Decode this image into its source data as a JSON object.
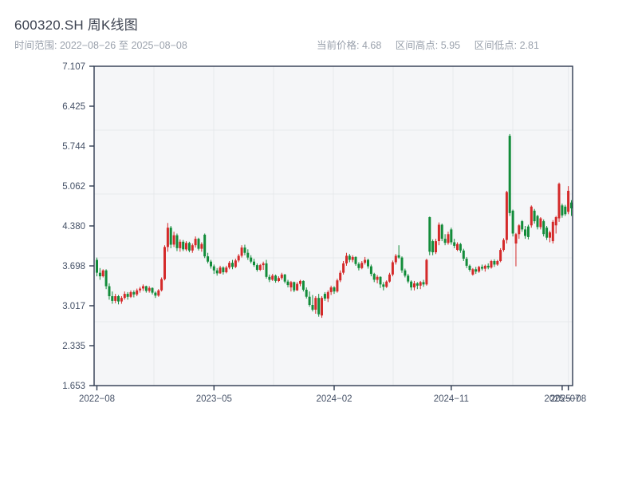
{
  "header": {
    "title": "600320.SH 周K线图",
    "subtitle": "时间范围: 2022−08−26 至 2025−08−08",
    "stats": {
      "current_label": "当前价格:",
      "current_value": "4.68",
      "high_label": "区间高点:",
      "high_value": "5.95",
      "low_label": "区间低点:",
      "low_value": "2.81"
    }
  },
  "chart_data": {
    "type": "candlestick",
    "title": "600320.SH 周K线图",
    "period": "weekly",
    "date_range": {
      "start": "2022-08-26",
      "end": "2025-08-08"
    },
    "current_price": 4.68,
    "range_high": 5.95,
    "range_low": 2.81,
    "colors": {
      "up": "#d42a2a",
      "down": "#128c3a",
      "frame": "#2e3a50",
      "grid": "#e7e9ec",
      "plot_bg": "#f5f6f8",
      "tick_text": "#445066"
    },
    "y_axis": {
      "min": 1.653,
      "max": 7.107,
      "ticks": [
        7.107,
        6.425,
        5.744,
        5.062,
        4.38,
        3.698,
        3.017,
        2.335,
        1.653
      ]
    },
    "x_axis": {
      "ticks": [
        {
          "index": 0,
          "label": "2022−08"
        },
        {
          "index": 38,
          "label": "2023−05"
        },
        {
          "index": 77,
          "label": "2024−02"
        },
        {
          "index": 115,
          "label": "2024−11"
        },
        {
          "index": 151,
          "label": "2025−07"
        },
        {
          "index": 153,
          "label": "2025−08"
        }
      ]
    },
    "grid": {
      "h_divisions": 5,
      "v_divisions": 8
    },
    "candles_ohlc": [
      [
        3.8,
        3.84,
        3.52,
        3.58
      ],
      [
        3.58,
        3.66,
        3.46,
        3.52
      ],
      [
        3.52,
        3.64,
        3.5,
        3.62
      ],
      [
        3.62,
        3.64,
        3.3,
        3.35
      ],
      [
        3.35,
        3.4,
        3.12,
        3.18
      ],
      [
        3.18,
        3.26,
        3.05,
        3.1
      ],
      [
        3.1,
        3.22,
        3.06,
        3.18
      ],
      [
        3.18,
        3.2,
        3.04,
        3.09
      ],
      [
        3.09,
        3.18,
        3.05,
        3.15
      ],
      [
        3.15,
        3.26,
        3.12,
        3.22
      ],
      [
        3.22,
        3.25,
        3.12,
        3.17
      ],
      [
        3.17,
        3.28,
        3.15,
        3.25
      ],
      [
        3.25,
        3.28,
        3.16,
        3.21
      ],
      [
        3.21,
        3.31,
        3.18,
        3.28
      ],
      [
        3.28,
        3.34,
        3.24,
        3.31
      ],
      [
        3.31,
        3.38,
        3.27,
        3.35
      ],
      [
        3.35,
        3.36,
        3.24,
        3.27
      ],
      [
        3.27,
        3.35,
        3.24,
        3.32
      ],
      [
        3.32,
        3.33,
        3.21,
        3.24
      ],
      [
        3.24,
        3.26,
        3.15,
        3.19
      ],
      [
        3.19,
        3.3,
        3.17,
        3.28
      ],
      [
        3.28,
        3.5,
        3.26,
        3.47
      ],
      [
        3.47,
        4.05,
        3.45,
        4.02
      ],
      [
        4.02,
        4.43,
        3.94,
        4.35
      ],
      [
        4.35,
        4.38,
        4.0,
        4.06
      ],
      [
        4.06,
        4.28,
        4.02,
        4.22
      ],
      [
        4.22,
        4.25,
        3.95,
        4.0
      ],
      [
        4.0,
        4.15,
        3.94,
        4.11
      ],
      [
        4.11,
        4.14,
        3.95,
        3.98
      ],
      [
        3.98,
        4.12,
        3.95,
        4.09
      ],
      [
        4.09,
        4.11,
        3.93,
        3.96
      ],
      [
        3.96,
        4.08,
        3.92,
        4.05
      ],
      [
        4.05,
        4.2,
        4.01,
        4.16
      ],
      [
        4.16,
        4.18,
        3.96,
        3.99
      ],
      [
        3.99,
        4.1,
        3.94,
        4.07
      ],
      [
        4.23,
        4.25,
        3.83,
        3.86
      ],
      [
        3.86,
        3.92,
        3.74,
        3.77
      ],
      [
        3.77,
        3.8,
        3.65,
        3.69
      ],
      [
        3.69,
        3.72,
        3.56,
        3.62
      ],
      [
        3.62,
        3.66,
        3.53,
        3.57
      ],
      [
        3.57,
        3.7,
        3.56,
        3.67
      ],
      [
        3.67,
        3.69,
        3.55,
        3.59
      ],
      [
        3.59,
        3.7,
        3.57,
        3.67
      ],
      [
        3.67,
        3.78,
        3.64,
        3.75
      ],
      [
        3.75,
        3.8,
        3.64,
        3.68
      ],
      [
        3.68,
        3.82,
        3.66,
        3.79
      ],
      [
        3.79,
        3.9,
        3.76,
        3.87
      ],
      [
        3.87,
        4.05,
        3.84,
        4.01
      ],
      [
        4.01,
        4.06,
        3.88,
        3.92
      ],
      [
        3.92,
        3.98,
        3.8,
        3.84
      ],
      [
        3.84,
        3.88,
        3.74,
        3.77
      ],
      [
        3.77,
        3.82,
        3.68,
        3.71
      ],
      [
        3.71,
        3.74,
        3.6,
        3.63
      ],
      [
        3.63,
        3.73,
        3.61,
        3.71
      ],
      [
        3.71,
        3.77,
        3.63,
        3.74
      ],
      [
        3.74,
        3.8,
        3.48,
        3.51
      ],
      [
        3.51,
        3.55,
        3.42,
        3.46
      ],
      [
        3.46,
        3.56,
        3.44,
        3.53
      ],
      [
        3.53,
        3.55,
        3.41,
        3.44
      ],
      [
        3.44,
        3.52,
        3.42,
        3.49
      ],
      [
        3.49,
        3.58,
        3.46,
        3.55
      ],
      [
        3.55,
        3.56,
        3.4,
        3.43
      ],
      [
        3.43,
        3.46,
        3.33,
        3.37
      ],
      [
        3.33,
        3.44,
        3.26,
        3.42
      ],
      [
        3.42,
        3.43,
        3.25,
        3.28
      ],
      [
        3.28,
        3.42,
        3.27,
        3.39
      ],
      [
        3.39,
        3.46,
        3.35,
        3.44
      ],
      [
        3.44,
        3.45,
        3.26,
        3.29
      ],
      [
        3.29,
        3.33,
        3.14,
        3.17
      ],
      [
        3.17,
        3.26,
        3.0,
        3.03
      ],
      [
        3.03,
        3.2,
        2.92,
        2.95
      ],
      [
        2.95,
        3.18,
        2.88,
        3.15
      ],
      [
        3.15,
        3.22,
        2.83,
        2.87
      ],
      [
        2.85,
        3.18,
        2.81,
        3.15
      ],
      [
        3.22,
        3.25,
        3.1,
        3.14
      ],
      [
        3.14,
        3.28,
        3.08,
        3.25
      ],
      [
        3.25,
        3.36,
        3.2,
        3.33
      ],
      [
        3.33,
        3.35,
        3.22,
        3.26
      ],
      [
        3.26,
        3.48,
        3.24,
        3.45
      ],
      [
        3.45,
        3.62,
        3.42,
        3.58
      ],
      [
        3.58,
        3.78,
        3.55,
        3.74
      ],
      [
        3.74,
        3.92,
        3.7,
        3.87
      ],
      [
        3.87,
        3.9,
        3.76,
        3.8
      ],
      [
        3.8,
        3.88,
        3.76,
        3.85
      ],
      [
        3.85,
        3.86,
        3.7,
        3.73
      ],
      [
        3.73,
        3.76,
        3.62,
        3.66
      ],
      [
        3.66,
        3.78,
        3.64,
        3.75
      ],
      [
        3.75,
        3.85,
        3.72,
        3.8
      ],
      [
        3.8,
        3.82,
        3.65,
        3.69
      ],
      [
        3.69,
        3.72,
        3.52,
        3.56
      ],
      [
        3.56,
        3.58,
        3.42,
        3.46
      ],
      [
        3.46,
        3.54,
        3.4,
        3.51
      ],
      [
        3.51,
        3.52,
        3.32,
        3.38
      ],
      [
        3.38,
        3.42,
        3.28,
        3.34
      ],
      [
        3.34,
        3.45,
        3.32,
        3.43
      ],
      [
        3.43,
        3.58,
        3.41,
        3.55
      ],
      [
        3.55,
        3.79,
        3.52,
        3.76
      ],
      [
        3.76,
        3.9,
        3.72,
        3.87
      ],
      [
        3.88,
        4.05,
        3.82,
        3.84
      ],
      [
        3.84,
        3.86,
        3.58,
        3.62
      ],
      [
        3.62,
        3.65,
        3.5,
        3.53
      ],
      [
        3.53,
        3.56,
        3.4,
        3.43
      ],
      [
        3.43,
        3.45,
        3.28,
        3.33
      ],
      [
        3.33,
        3.44,
        3.28,
        3.4
      ],
      [
        3.4,
        3.42,
        3.3,
        3.36
      ],
      [
        3.36,
        3.44,
        3.3,
        3.42
      ],
      [
        3.42,
        3.46,
        3.34,
        3.38
      ],
      [
        3.38,
        3.82,
        3.36,
        3.8
      ],
      [
        4.53,
        4.54,
        3.88,
        3.94
      ],
      [
        4.12,
        4.15,
        3.88,
        3.93
      ],
      [
        3.93,
        4.16,
        3.9,
        4.12
      ],
      [
        4.12,
        4.44,
        4.05,
        4.4
      ],
      [
        4.4,
        4.42,
        4.12,
        4.16
      ],
      [
        4.16,
        4.24,
        4.05,
        4.09
      ],
      [
        4.09,
        4.28,
        4.06,
        4.24
      ],
      [
        4.32,
        4.35,
        4.06,
        4.1
      ],
      [
        4.1,
        4.16,
        4.0,
        4.04
      ],
      [
        3.97,
        4.1,
        3.95,
        4.07
      ],
      [
        4.07,
        4.09,
        3.92,
        3.96
      ],
      [
        3.96,
        3.99,
        3.78,
        3.82
      ],
      [
        3.82,
        3.85,
        3.66,
        3.7
      ],
      [
        3.7,
        3.72,
        3.6,
        3.63
      ],
      [
        3.55,
        3.66,
        3.53,
        3.64
      ],
      [
        3.64,
        3.68,
        3.56,
        3.6
      ],
      [
        3.6,
        3.7,
        3.58,
        3.68
      ],
      [
        3.68,
        3.72,
        3.62,
        3.65
      ],
      [
        3.65,
        3.72,
        3.6,
        3.7
      ],
      [
        3.7,
        3.74,
        3.64,
        3.67
      ],
      [
        3.67,
        3.8,
        3.65,
        3.78
      ],
      [
        3.78,
        3.81,
        3.68,
        3.72
      ],
      [
        3.72,
        3.8,
        3.7,
        3.78
      ],
      [
        3.78,
        4.0,
        3.76,
        3.97
      ],
      [
        3.97,
        4.17,
        3.94,
        4.14
      ],
      [
        4.14,
        4.98,
        4.08,
        4.96
      ],
      [
        5.92,
        5.95,
        4.55,
        4.6
      ],
      [
        4.64,
        4.66,
        4.2,
        4.25
      ],
      [
        4.08,
        4.26,
        3.69,
        4.24
      ],
      [
        4.24,
        4.41,
        4.16,
        4.39
      ],
      [
        4.46,
        4.48,
        4.28,
        4.32
      ],
      [
        4.32,
        4.38,
        4.16,
        4.21
      ],
      [
        4.37,
        4.4,
        4.15,
        4.19
      ],
      [
        4.39,
        4.73,
        4.35,
        4.71
      ],
      [
        4.64,
        4.67,
        4.42,
        4.46
      ],
      [
        4.55,
        4.57,
        4.32,
        4.36
      ],
      [
        4.36,
        4.53,
        4.32,
        4.51
      ],
      [
        4.46,
        4.49,
        4.2,
        4.24
      ],
      [
        4.35,
        4.38,
        4.14,
        4.18
      ],
      [
        4.18,
        4.3,
        4.1,
        4.27
      ],
      [
        4.12,
        4.48,
        4.08,
        4.45
      ],
      [
        4.39,
        4.55,
        4.25,
        4.53
      ],
      [
        4.51,
        5.12,
        4.45,
        5.1
      ],
      [
        4.73,
        4.76,
        4.52,
        4.56
      ],
      [
        4.71,
        4.74,
        4.55,
        4.58
      ],
      [
        4.62,
        5.06,
        4.58,
        4.98
      ],
      [
        4.78,
        4.82,
        4.55,
        4.68
      ]
    ]
  }
}
